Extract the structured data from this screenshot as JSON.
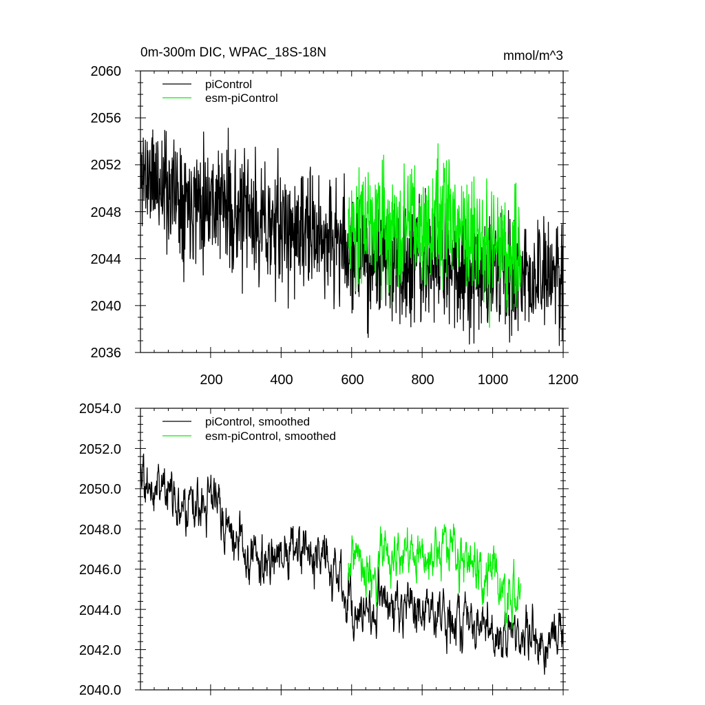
{
  "title": "0m-300m DIC, WPAC_18S-18N",
  "units": "mmol/m^3",
  "colors": {
    "piControl": "#000000",
    "esm_piControl": "#00ee00"
  },
  "chart_data": [
    {
      "type": "line",
      "panel": "top",
      "title": "0m-300m DIC, WPAC_18S-18N",
      "units": "mmol/m^3",
      "xlim": [
        1,
        1200
      ],
      "ylim": [
        2036,
        2060
      ],
      "xticks": [
        200,
        400,
        600,
        800,
        1000,
        1200
      ],
      "xticklabels": [
        "200",
        "400",
        "600",
        "800",
        "1000",
        "1200"
      ],
      "yticks": [
        2036,
        2040,
        2044,
        2048,
        2052,
        2056,
        2060
      ],
      "yticklabels": [
        "2036",
        "2040",
        "2044",
        "2048",
        "2052",
        "2056",
        "2060"
      ],
      "legend": [
        "piControl",
        "esm-piControl"
      ],
      "legend_position": "top-left",
      "series": [
        {
          "name": "piControl",
          "color": "#000000",
          "x": [
            1,
            25,
            50,
            75,
            100,
            125,
            150,
            175,
            200,
            225,
            250,
            275,
            300,
            325,
            350,
            375,
            400,
            425,
            450,
            475,
            500,
            525,
            550,
            575,
            600,
            625,
            650,
            675,
            700,
            725,
            750,
            775,
            800,
            825,
            850,
            875,
            900,
            925,
            950,
            975,
            1000,
            1025,
            1050,
            1075,
            1100,
            1125,
            1150,
            1175,
            1200
          ],
          "mean": [
            2051.5,
            2051.0,
            2050.6,
            2050.2,
            2049.8,
            2049.4,
            2049.3,
            2049.2,
            2049.2,
            2049.0,
            2048.3,
            2047.8,
            2047.4,
            2047.1,
            2046.9,
            2046.8,
            2046.6,
            2046.4,
            2046.2,
            2046.0,
            2045.9,
            2045.8,
            2045.6,
            2045.0,
            2044.7,
            2044.4,
            2044.0,
            2043.7,
            2043.9,
            2043.8,
            2043.5,
            2043.6,
            2043.4,
            2043.6,
            2043.5,
            2043.4,
            2043.2,
            2043.0,
            2043.0,
            2042.9,
            2042.6,
            2042.5,
            2042.7,
            2042.5,
            2042.3,
            2042.4,
            2042.1,
            2042.3,
            2042.8
          ],
          "spread": 2.6
        },
        {
          "name": "esm-piControl",
          "color": "#00ee00",
          "x": [
            591,
            600,
            625,
            650,
            675,
            700,
            725,
            750,
            775,
            800,
            825,
            850,
            875,
            900,
            925,
            950,
            975,
            1000,
            1025,
            1050,
            1075,
            1080
          ],
          "mean": [
            2046.5,
            2047.0,
            2046.8,
            2046.4,
            2046.0,
            2046.6,
            2046.9,
            2046.2,
            2046.7,
            2046.4,
            2046.6,
            2047.0,
            2047.2,
            2046.5,
            2046.0,
            2045.8,
            2045.4,
            2045.2,
            2045.0,
            2044.9,
            2044.8,
            2045.2
          ],
          "spread": 2.6
        }
      ]
    },
    {
      "type": "line",
      "panel": "bottom",
      "xlim": [
        1,
        1200
      ],
      "ylim": [
        2040,
        2054
      ],
      "xticks": [
        200,
        400,
        600,
        800,
        1000,
        1200
      ],
      "yticks": [
        2040,
        2042,
        2044,
        2046,
        2048,
        2050,
        2052,
        2054
      ],
      "yticklabels": [
        "2040.0",
        "2042.0",
        "2044.0",
        "2046.0",
        "2048.0",
        "2050.0",
        "2052.0",
        "2054.0"
      ],
      "legend": [
        "piControl, smoothed",
        "esm-piControl, smoothed"
      ],
      "legend_position": "top-left",
      "series": [
        {
          "name": "piControl, smoothed",
          "color": "#000000",
          "x": [
            1,
            25,
            50,
            75,
            100,
            125,
            150,
            175,
            200,
            225,
            250,
            275,
            300,
            325,
            350,
            375,
            400,
            425,
            450,
            475,
            500,
            525,
            550,
            575,
            600,
            625,
            650,
            675,
            700,
            725,
            750,
            775,
            800,
            825,
            850,
            875,
            900,
            925,
            950,
            975,
            1000,
            1025,
            1050,
            1075,
            1100,
            1125,
            1150,
            1175,
            1200
          ],
          "mean": [
            2051.2,
            2050.4,
            2050.2,
            2049.9,
            2049.7,
            2049.4,
            2049.5,
            2049.5,
            2049.6,
            2049.6,
            2047.8,
            2047.3,
            2047.1,
            2047.0,
            2046.4,
            2046.2,
            2046.8,
            2046.7,
            2046.5,
            2046.2,
            2046.6,
            2046.2,
            2045.5,
            2045.2,
            2044.4,
            2044.2,
            2044.4,
            2043.9,
            2044.3,
            2044.2,
            2044.0,
            2043.8,
            2043.5,
            2043.6,
            2043.8,
            2043.6,
            2043.2,
            2043.1,
            2043.3,
            2043.3,
            2043.3,
            2043.0,
            2042.8,
            2042.6,
            2042.5,
            2042.4,
            2042.4,
            2042.4,
            2043.5
          ],
          "spread": 1.0
        },
        {
          "name": "esm-piControl, smoothed",
          "color": "#00ee00",
          "x": [
            591,
            600,
            625,
            650,
            675,
            700,
            725,
            750,
            775,
            800,
            825,
            850,
            875,
            900,
            925,
            950,
            975,
            1000,
            1025,
            1050,
            1075,
            1080
          ],
          "mean": [
            2045.8,
            2047.4,
            2046.4,
            2045.8,
            2046.5,
            2046.8,
            2046.6,
            2046.4,
            2046.9,
            2046.8,
            2046.3,
            2047.4,
            2047.6,
            2046.6,
            2045.7,
            2046.0,
            2045.6,
            2045.5,
            2045.0,
            2045.1,
            2044.9,
            2045.8
          ],
          "spread": 1.0
        }
      ]
    }
  ]
}
